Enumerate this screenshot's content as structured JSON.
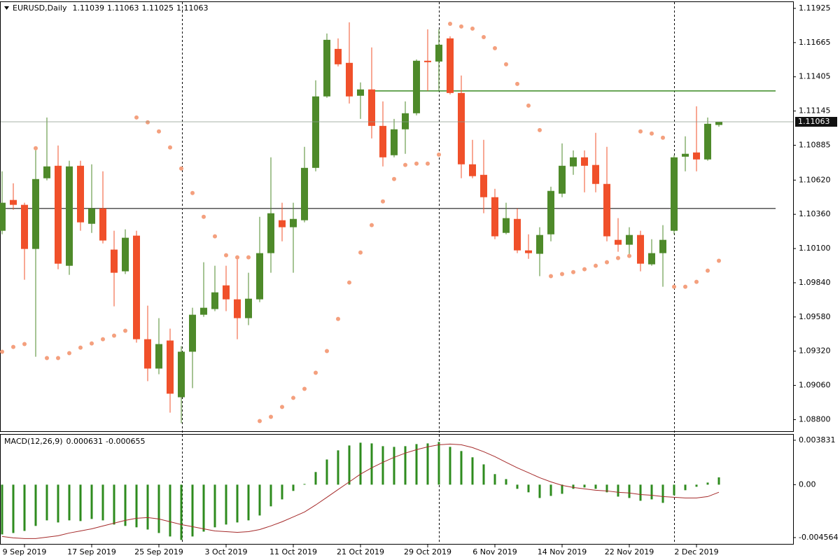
{
  "chart_data": [
    {
      "type": "candlestick",
      "title": "EURUSD,Daily",
      "categories": [
        null,
        null,
        "9 Sep 2019",
        null,
        null,
        null,
        null,
        null,
        "17 Sep 2019",
        null,
        null,
        null,
        null,
        null,
        "25 Sep 2019",
        null,
        null,
        null,
        null,
        null,
        "3 Oct 2019",
        null,
        null,
        null,
        null,
        null,
        "11 Oct 2019",
        null,
        null,
        null,
        null,
        null,
        "21 Oct 2019",
        null,
        null,
        null,
        null,
        null,
        "29 Oct 2019",
        null,
        null,
        null,
        null,
        null,
        "6 Nov 2019",
        null,
        null,
        null,
        null,
        null,
        "14 Nov 2019",
        null,
        null,
        null,
        null,
        null,
        "22 Nov 2019",
        null,
        null,
        null,
        null,
        null,
        "2 Dec 2019",
        null,
        null
      ],
      "open": [
        1.10235,
        1.10469,
        1.10432,
        1.10097,
        1.10634,
        1.10729,
        1.09969,
        1.10729,
        1.10288,
        1.10405,
        1.10092,
        1.09927,
        1.10198,
        1.09411,
        1.09188,
        1.09401,
        1.0897,
        1.09316,
        1.09597,
        1.0964,
        1.0982,
        1.09714,
        1.09571,
        1.09714,
        1.10065,
        1.10315,
        1.10262,
        1.10315,
        1.10713,
        1.11256,
        1.11617,
        1.11511,
        1.11261,
        1.11309,
        1.11032,
        1.10809,
        1.11006,
        1.11128,
        1.11527,
        1.11521,
        1.11697,
        1.11282,
        1.1074,
        1.1066,
        1.1049,
        1.10219,
        1.10325,
        1.10086,
        1.1006,
        1.10208,
        1.10517,
        1.10724,
        1.10793,
        1.10735,
        1.10591,
        1.10166,
        1.10129,
        1.10203,
        1.0998,
        1.10065,
        1.10235,
        1.10798,
        1.1083,
        1.10777,
        1.11039
      ],
      "high": [
        1.10687,
        1.10596,
        1.10448,
        1.10873,
        1.11096,
        1.10883,
        1.10767,
        1.10767,
        1.1074,
        1.10687,
        1.10235,
        1.10246,
        1.10235,
        1.09666,
        1.09571,
        1.09491,
        1.09358,
        1.0965,
        1.09996,
        1.09969,
        1.09969,
        1.10033,
        1.09916,
        1.10341,
        1.10793,
        1.10448,
        1.10448,
        1.10873,
        1.11378,
        1.11734,
        1.11697,
        1.11819,
        1.11362,
        1.11628,
        1.11218,
        1.11085,
        1.11218,
        1.11537,
        1.11766,
        1.11766,
        1.11713,
        1.11415,
        1.10926,
        1.10926,
        1.10554,
        1.10448,
        1.10405,
        1.10208,
        1.10262,
        1.1057,
        1.10899,
        1.10846,
        1.10846,
        1.10979,
        1.10873,
        1.10331,
        1.10262,
        1.10235,
        1.10171,
        1.10278,
        1.10809,
        1.10953,
        1.11181,
        1.11096,
        1.11063
      ],
      "low": [
        1.10208,
        1.10394,
        1.09863,
        1.09278,
        1.10618,
        1.09943,
        1.099,
        1.10235,
        1.10219,
        1.10139,
        1.09661,
        1.09906,
        1.09385,
        1.09092,
        1.09145,
        1.08853,
        1.08773,
        1.09039,
        1.09581,
        1.09624,
        1.09624,
        1.09411,
        1.09518,
        1.09693,
        1.09916,
        1.10155,
        1.09916,
        1.10299,
        1.10687,
        1.11245,
        1.11484,
        1.11202,
        1.11085,
        1.10937,
        1.10724,
        1.10793,
        1.1082,
        1.11112,
        1.11298,
        1.11298,
        1.11271,
        1.10634,
        1.10634,
        1.10368,
        1.10171,
        1.10208,
        1.10065,
        1.10022,
        1.0989,
        1.10155,
        1.1049,
        1.1066,
        1.10527,
        1.10527,
        1.10155,
        1.10076,
        1.10033,
        1.09927,
        1.09969,
        1.0981,
        1.10208,
        1.10687,
        1.10687,
        1.10767,
        1.11025
      ],
      "close": [
        1.10448,
        1.10432,
        1.10097,
        1.10628,
        1.10724,
        1.09985,
        1.10724,
        1.10299,
        1.10405,
        1.10161,
        1.09916,
        1.10182,
        1.09411,
        1.09188,
        1.09374,
        1.08997,
        1.09316,
        1.09597,
        1.0965,
        1.09767,
        1.09714,
        1.09571,
        1.09719,
        1.10065,
        1.10368,
        1.10262,
        1.10325,
        1.10713,
        1.11256,
        1.11686,
        1.115,
        1.11256,
        1.11309,
        1.11032,
        1.10793,
        1.11006,
        1.11128,
        1.11527,
        1.11516,
        1.11649,
        1.11282,
        1.1074,
        1.1065,
        1.1049,
        1.10193,
        1.10331,
        1.10086,
        1.10065,
        1.10203,
        1.10538,
        1.10729,
        1.10793,
        1.10729,
        1.10591,
        1.10193,
        1.10129,
        1.10203,
        1.09985,
        1.10065,
        1.10166,
        1.10793,
        1.1082,
        1.10777,
        1.11048,
        1.11063
      ],
      "up_color": "#4e8a2a",
      "down_color": "#f0502a",
      "sar": {
        "color": "#f4a07e",
        "values": [
          1.09316,
          1.09352,
          1.09374,
          1.10862,
          1.09268,
          1.09268,
          1.09305,
          1.09347,
          1.09379,
          1.09411,
          1.09438,
          1.09475,
          1.11096,
          1.11059,
          1.1099,
          1.10868,
          1.10708,
          1.10522,
          1.10341,
          1.10193,
          1.10049,
          1.10033,
          1.10033,
          1.08789,
          1.08821,
          1.08896,
          1.08965,
          1.09034,
          1.09156,
          1.09321,
          1.09565,
          1.09842,
          1.1007,
          1.10278,
          1.10458,
          1.10628,
          1.10735,
          1.10745,
          1.10745,
          1.10814,
          1.11808,
          1.11787,
          1.11771,
          1.11707,
          1.11622,
          1.115,
          1.11351,
          1.11186,
          1.11,
          1.0989,
          1.09906,
          1.09921,
          1.09943,
          1.09969,
          1.09996,
          1.10028,
          1.10044,
          1.1099,
          1.10974,
          1.10942,
          1.0981,
          1.0981,
          1.09847,
          1.09932,
          1.10007
        ]
      },
      "lines": [
        {
          "value": 1.11298,
          "color": "#3a8a22"
        },
        {
          "value": 1.10405,
          "color": "#555555"
        }
      ],
      "ylim": [
        1.08712,
        1.11978
      ],
      "yticks": [
        {
          "value": 1.11925,
          "label": "1.11925"
        },
        {
          "value": 1.11665,
          "label": "1.11665"
        },
        {
          "value": 1.11405,
          "label": "1.11405"
        },
        {
          "value": 1.11145,
          "label": "1.11145"
        },
        {
          "value": 1.10885,
          "label": "1.10885"
        },
        {
          "value": 1.1062,
          "label": "1.10620"
        },
        {
          "value": 1.1036,
          "label": "1.10360"
        },
        {
          "value": 1.101,
          "label": "1.10100"
        },
        {
          "value": 1.0984,
          "label": "1.09840"
        },
        {
          "value": 1.0958,
          "label": "1.09580"
        },
        {
          "value": 1.0932,
          "label": "1.09320"
        },
        {
          "value": 1.0906,
          "label": "1.09060"
        },
        {
          "value": 1.088,
          "label": "1.08800"
        }
      ]
    },
    {
      "type": "macd",
      "title": "MACD(12,26,9)",
      "histogram": {
        "color": "#2e8b1e",
        "values": [
          -0.00429,
          -0.00417,
          -0.00399,
          -0.00356,
          -0.00308,
          -0.00326,
          -0.00308,
          -0.00314,
          -0.00296,
          -0.00308,
          -0.00344,
          -0.00356,
          -0.00368,
          -0.00387,
          -0.00417,
          -0.00447,
          -0.00477,
          -0.00447,
          -0.00405,
          -0.00368,
          -0.00344,
          -0.00326,
          -0.00308,
          -0.00266,
          -0.00187,
          -0.00127,
          -0.00054,
          6e-05,
          0.00109,
          0.00217,
          0.00296,
          0.00338,
          0.00362,
          0.00356,
          0.00332,
          0.00326,
          0.00332,
          0.0035,
          0.00356,
          0.00368,
          0.00326,
          0.0029,
          0.00236,
          0.00175,
          0.00091,
          0.00048,
          -0.00036,
          -0.00066,
          -0.00115,
          -0.00097,
          -0.00079,
          -0.00036,
          -0.00024,
          -0.00036,
          -0.00066,
          -0.00103,
          -0.00115,
          -0.00139,
          -0.00127,
          -0.00157,
          -0.00091,
          -0.00048,
          -0.00018,
          0.00018,
          0.000631
        ]
      },
      "signal": {
        "color": "#a52a2a",
        "values": [
          -0.00447,
          -0.00459,
          -0.00465,
          -0.00465,
          -0.00453,
          -0.00441,
          -0.00417,
          -0.00399,
          -0.00381,
          -0.00356,
          -0.00332,
          -0.00308,
          -0.0029,
          -0.00284,
          -0.00296,
          -0.0032,
          -0.00344,
          -0.00362,
          -0.00381,
          -0.00399,
          -0.00405,
          -0.00411,
          -0.00405,
          -0.00387,
          -0.00356,
          -0.0032,
          -0.00278,
          -0.00236,
          -0.00175,
          -0.00109,
          -0.00042,
          0.00024,
          0.00091,
          0.00145,
          0.00193,
          0.00236,
          0.00272,
          0.00302,
          0.00326,
          0.00344,
          0.0035,
          0.00344,
          0.0032,
          0.00284,
          0.00242,
          0.00193,
          0.00145,
          0.00103,
          0.0006,
          0.00024,
          -6e-05,
          -0.00024,
          -0.00036,
          -0.00048,
          -0.00054,
          -0.00066,
          -0.00072,
          -0.00085,
          -0.00091,
          -0.00103,
          -0.00109,
          -0.00115,
          -0.00115,
          -0.00103,
          -0.000655
        ]
      },
      "ylim": [
        -0.00511,
        0.00437
      ],
      "yticks": [
        0.003831,
        {
          "value": 0,
          "label": "0.00"
        },
        -0.004564
      ]
    }
  ]
}
